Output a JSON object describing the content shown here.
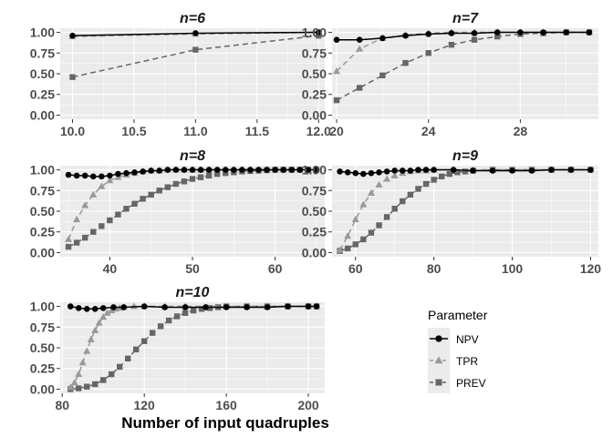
{
  "chart_data": {
    "type": "line",
    "xlabel": "Number of input quadruples",
    "ylabel": "",
    "legend": {
      "title": "Parameter",
      "placement": "right",
      "entries": [
        {
          "name": "NPV",
          "color": "#000000",
          "marker": "circle",
          "linetype": "solid"
        },
        {
          "name": "TPR",
          "color": "#999999",
          "marker": "triangle",
          "linetype": "dashed"
        },
        {
          "name": "PREV",
          "color": "#666666",
          "marker": "square",
          "linetype": "dashed"
        }
      ]
    },
    "panels": [
      {
        "title": "n=6",
        "xlim": [
          9.9,
          12.05
        ],
        "ylim": [
          -0.05,
          1.05
        ],
        "xticks": [
          10.0,
          10.5,
          11.0,
          11.5,
          12.0
        ],
        "xtick_labels": [
          "10.0",
          "10.5",
          "11.0",
          "11.5",
          "12.0"
        ],
        "yticks": [
          0.0,
          0.25,
          0.5,
          0.75,
          1.0
        ],
        "ytick_labels": [
          "0.00",
          "0.25",
          "0.50",
          "0.75",
          "1.00"
        ],
        "series": [
          {
            "name": "NPV",
            "x": [
              10,
              11,
              12
            ],
            "y": [
              0.96,
              0.99,
              1.0
            ]
          },
          {
            "name": "TPR",
            "x": [
              10,
              11,
              12
            ],
            "y": [
              0.95,
              0.98,
              1.0
            ]
          },
          {
            "name": "PREV",
            "x": [
              10,
              11,
              12
            ],
            "y": [
              0.46,
              0.79,
              0.96
            ]
          }
        ]
      },
      {
        "title": "n=7",
        "xlim": [
          19.8,
          31.4
        ],
        "ylim": [
          -0.05,
          1.05
        ],
        "xticks": [
          20,
          24,
          28
        ],
        "xtick_labels": [
          "20",
          "24",
          "28"
        ],
        "yticks": [
          0.0,
          0.25,
          0.5,
          0.75,
          1.0
        ],
        "ytick_labels": [
          "0.00",
          "0.25",
          "0.50",
          "0.75",
          "1.00"
        ],
        "series": [
          {
            "name": "NPV",
            "x": [
              20,
              21,
              22,
              23,
              24,
              25,
              26,
              27,
              28,
              29,
              30,
              31
            ],
            "y": [
              0.91,
              0.91,
              0.93,
              0.96,
              0.98,
              0.99,
              0.99,
              1.0,
              1.0,
              1.0,
              1.0,
              1.0
            ]
          },
          {
            "name": "TPR",
            "x": [
              20,
              21,
              22,
              23,
              24,
              25,
              26,
              27,
              28,
              29,
              30,
              31
            ],
            "y": [
              0.53,
              0.8,
              0.93,
              0.97,
              0.99,
              1.0,
              1.0,
              1.0,
              1.0,
              1.0,
              1.0,
              1.0
            ]
          },
          {
            "name": "PREV",
            "x": [
              20,
              21,
              22,
              23,
              24,
              25,
              26,
              27,
              28,
              29,
              30,
              31
            ],
            "y": [
              0.18,
              0.33,
              0.48,
              0.63,
              0.75,
              0.85,
              0.91,
              0.95,
              0.98,
              0.99,
              1.0,
              1.0
            ]
          }
        ]
      },
      {
        "title": "n=8",
        "xlim": [
          34,
          66
        ],
        "ylim": [
          -0.05,
          1.05
        ],
        "xticks": [
          40,
          50,
          60
        ],
        "xtick_labels": [
          "40",
          "50",
          "60"
        ],
        "yticks": [
          0.0,
          0.25,
          0.5,
          0.75,
          1.0
        ],
        "ytick_labels": [
          "0.00",
          "0.25",
          "0.50",
          "0.75",
          "1.00"
        ],
        "series": [
          {
            "name": "NPV",
            "x": [
              35,
              36,
              37,
              38,
              39,
              40,
              41,
              42,
              43,
              44,
              45,
              46,
              47,
              48,
              49,
              50,
              51,
              52,
              53,
              54,
              55,
              56,
              57,
              58,
              59,
              60,
              61,
              62,
              63,
              64,
              65
            ],
            "y": [
              0.94,
              0.93,
              0.93,
              0.92,
              0.92,
              0.93,
              0.95,
              0.96,
              0.97,
              0.98,
              0.99,
              0.99,
              1.0,
              1.0,
              1.0,
              1.0,
              1.0,
              1.0,
              1.0,
              1.0,
              1.0,
              1.0,
              1.0,
              1.0,
              1.0,
              1.0,
              1.0,
              1.0,
              1.0,
              1.0,
              1.0
            ]
          },
          {
            "name": "TPR",
            "x": [
              35,
              36,
              37,
              38,
              39,
              40,
              41,
              42,
              43,
              44,
              45,
              46,
              47,
              48,
              49,
              50,
              51,
              52,
              53,
              54,
              55,
              56,
              57,
              58,
              59,
              60,
              61,
              62,
              63,
              64,
              65
            ],
            "y": [
              0.16,
              0.4,
              0.57,
              0.7,
              0.8,
              0.87,
              0.91,
              0.94,
              0.96,
              0.98,
              0.99,
              0.99,
              1.0,
              1.0,
              1.0,
              1.0,
              1.0,
              1.0,
              1.0,
              1.0,
              1.0,
              1.0,
              1.0,
              1.0,
              1.0,
              1.0,
              1.0,
              1.0,
              1.0,
              1.0,
              1.0
            ]
          },
          {
            "name": "PREV",
            "x": [
              35,
              36,
              37,
              38,
              39,
              40,
              41,
              42,
              43,
              44,
              45,
              46,
              47,
              48,
              49,
              50,
              51,
              52,
              53,
              54,
              55,
              56,
              57,
              58,
              59,
              60,
              61,
              62,
              63,
              64,
              65
            ],
            "y": [
              0.07,
              0.12,
              0.18,
              0.25,
              0.32,
              0.39,
              0.46,
              0.53,
              0.59,
              0.65,
              0.7,
              0.75,
              0.79,
              0.83,
              0.86,
              0.89,
              0.91,
              0.93,
              0.95,
              0.96,
              0.97,
              0.98,
              0.985,
              0.99,
              0.995,
              1.0,
              1.0,
              1.0,
              1.0,
              1.0,
              1.0
            ]
          }
        ]
      },
      {
        "title": "n=9",
        "xlim": [
          54,
          122
        ],
        "ylim": [
          -0.05,
          1.05
        ],
        "xticks": [
          60,
          80,
          100,
          120
        ],
        "xtick_labels": [
          "60",
          "80",
          "100",
          "120"
        ],
        "yticks": [
          0.0,
          0.25,
          0.5,
          0.75,
          1.0
        ],
        "ytick_labels": [
          "0.00",
          "0.25",
          "0.50",
          "0.75",
          "1.00"
        ],
        "series": [
          {
            "name": "NPV",
            "x": [
              56,
              58,
              60,
              62,
              64,
              66,
              68,
              70,
              72,
              74,
              76,
              78,
              80,
              85,
              90,
              95,
              100,
              105,
              110,
              115,
              120
            ],
            "y": [
              0.98,
              0.97,
              0.96,
              0.95,
              0.96,
              0.97,
              0.98,
              0.99,
              0.99,
              0.99,
              1.0,
              1.0,
              1.0,
              1.0,
              0.99,
              0.99,
              0.99,
              0.99,
              1.0,
              1.0,
              1.0
            ]
          },
          {
            "name": "TPR",
            "x": [
              56,
              58,
              60,
              62,
              64,
              66,
              68,
              70,
              72,
              74,
              76,
              78,
              80,
              85,
              90,
              95,
              100,
              105,
              110,
              115,
              120
            ],
            "y": [
              0.03,
              0.2,
              0.4,
              0.58,
              0.72,
              0.82,
              0.89,
              0.93,
              0.96,
              0.98,
              0.99,
              0.99,
              1.0,
              1.0,
              1.0,
              1.0,
              1.0,
              1.0,
              1.0,
              1.0,
              1.0
            ]
          },
          {
            "name": "PREV",
            "x": [
              56,
              58,
              60,
              62,
              64,
              66,
              68,
              70,
              72,
              74,
              76,
              78,
              80,
              82,
              84,
              86,
              88,
              90,
              95,
              100,
              105,
              110,
              115,
              120
            ],
            "y": [
              0.02,
              0.05,
              0.1,
              0.16,
              0.24,
              0.33,
              0.43,
              0.53,
              0.62,
              0.7,
              0.77,
              0.83,
              0.88,
              0.92,
              0.95,
              0.97,
              0.98,
              0.99,
              1.0,
              1.0,
              1.0,
              1.0,
              1.0,
              1.0
            ]
          }
        ]
      },
      {
        "title": "n=10",
        "xlim": [
          79,
          208
        ],
        "ylim": [
          -0.05,
          1.05
        ],
        "xticks": [
          80,
          120,
          160,
          200
        ],
        "xtick_labels": [
          "80",
          "120",
          "160",
          "200"
        ],
        "yticks": [
          0.0,
          0.25,
          0.5,
          0.75,
          1.0
        ],
        "ytick_labels": [
          "0.00",
          "0.25",
          "0.50",
          "0.75",
          "1.00"
        ],
        "series": [
          {
            "name": "NPV",
            "x": [
              84,
              88,
              92,
              96,
              100,
              105,
              110,
              120,
              130,
              140,
              150,
              160,
              170,
              180,
              190,
              200,
              204
            ],
            "y": [
              1.0,
              0.98,
              0.97,
              0.97,
              0.98,
              0.99,
              0.99,
              1.0,
              0.99,
              0.99,
              0.99,
              0.99,
              0.99,
              0.99,
              1.0,
              1.0,
              1.0
            ]
          },
          {
            "name": "TPR",
            "x": [
              84,
              86,
              88,
              90,
              92,
              94,
              96,
              98,
              100,
              102,
              104,
              106,
              108,
              110,
              115,
              120,
              130,
              140,
              160,
              180,
              200,
              204
            ],
            "y": [
              0.02,
              0.08,
              0.18,
              0.32,
              0.46,
              0.6,
              0.71,
              0.8,
              0.87,
              0.92,
              0.95,
              0.97,
              0.98,
              0.99,
              1.0,
              1.0,
              1.0,
              1.0,
              1.0,
              1.0,
              1.0,
              1.0
            ]
          },
          {
            "name": "PREV",
            "x": [
              84,
              88,
              92,
              96,
              100,
              104,
              108,
              112,
              116,
              120,
              124,
              128,
              132,
              136,
              140,
              144,
              148,
              152,
              156,
              160,
              170,
              180,
              190,
              200,
              204
            ],
            "y": [
              0.0,
              0.01,
              0.03,
              0.06,
              0.11,
              0.18,
              0.27,
              0.37,
              0.48,
              0.58,
              0.68,
              0.76,
              0.83,
              0.88,
              0.92,
              0.95,
              0.97,
              0.98,
              0.99,
              1.0,
              1.0,
              1.0,
              1.0,
              1.0,
              1.0
            ]
          }
        ]
      }
    ]
  }
}
